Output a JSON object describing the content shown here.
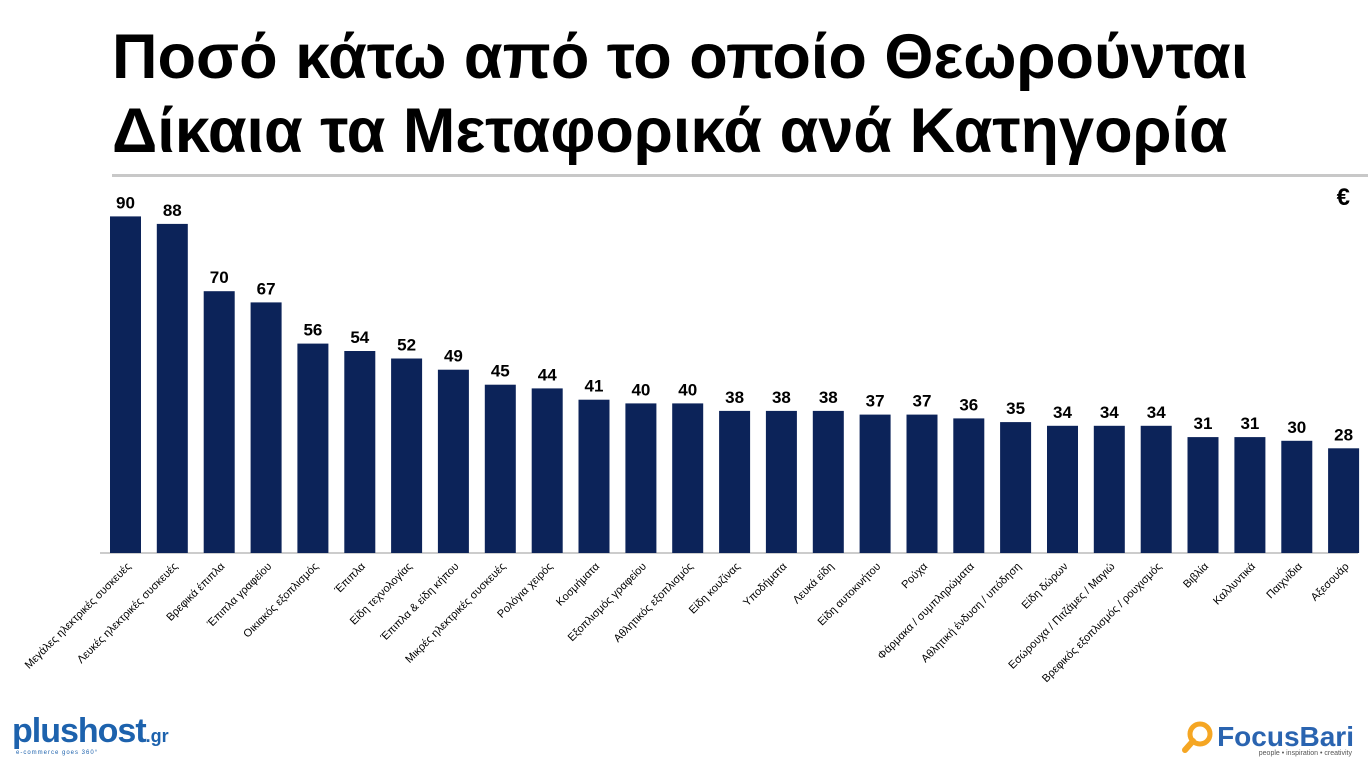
{
  "title": {
    "line1": "Ποσό κάτω από το οποίο Θεωρούνται",
    "line2": "Δίκαια τα Μεταφορικά ανά Κατηγορία"
  },
  "unit_label": "€",
  "colors": {
    "bar": "#0c2359",
    "axis": "#9a9a9a",
    "title_rule": "#c8c8c8"
  },
  "logos": {
    "left": {
      "main": "plushost",
      "suffix": ".gr",
      "tagline": "e-commerce goes 360°"
    },
    "right": {
      "main": "FocusBari",
      "tagline": "people • inspiration • creativity",
      "icon": "magnifier-icon"
    }
  },
  "chart_data": {
    "type": "bar",
    "title": "",
    "xlabel": "",
    "ylabel": "€",
    "ylim": [
      0,
      95
    ],
    "grid": false,
    "categories": [
      "Μεγάλες ηλεκτρικές συσκευές",
      "Λευκές ηλεκτρικές συσκευές",
      "Βρεφικά έπιπλα",
      "Έπιπλα γραφείου",
      "Οικιακός εξοπλισμός",
      "Έπιπλα",
      "Είδη τεχνολογίας",
      "Έπιπλα & είδη κήπου",
      "Μικρές ηλεκτρικές συσκευές",
      "Ρολόγια χειρός",
      "Κοσμήματα",
      "Εξοπλισμός γραφείου",
      "Αθλητικός εξοπλισμός",
      "Είδη κουζίνας",
      "Υποδήματα",
      "Λευκά είδη",
      "Είδη αυτοκινήτου",
      "Ρούχα",
      "Φάρμακα / συμπληρώματα",
      "Αθλητική ένδυση / υπόδηση",
      "Είδη δώρων",
      "Εσώρουχα / Πιτζάμες / Μαγιώ",
      "Βρεφικός εξοπλισμός / ρουχισμός",
      "Βιβλία",
      "Καλλυντικά",
      "Παιχνίδια",
      "Αξεσουάρ"
    ],
    "values": [
      90,
      88,
      70,
      67,
      56,
      54,
      52,
      49,
      45,
      44,
      41,
      40,
      40,
      38,
      38,
      38,
      37,
      37,
      36,
      35,
      34,
      34,
      34,
      31,
      31,
      30,
      28
    ]
  }
}
